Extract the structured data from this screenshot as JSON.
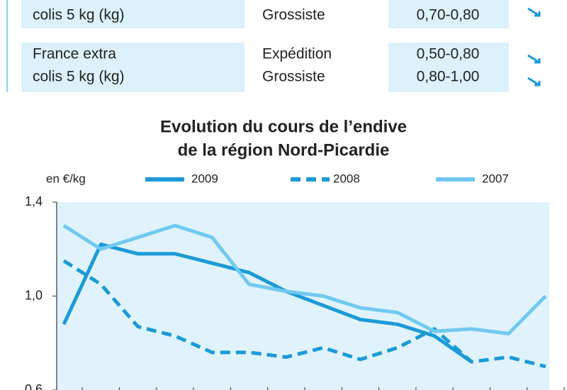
{
  "table": {
    "rows": [
      {
        "product": [
          "colis 5 kg (kg)"
        ],
        "stage": [
          "Grossiste"
        ],
        "price": [
          "0,70-0,80"
        ]
      },
      {
        "product": [
          "France extra",
          "colis 5 kg (kg)"
        ],
        "stage": [
          "Expédition",
          "Grossiste"
        ],
        "price": [
          "0,50-0,80",
          "0,80-1,00"
        ]
      }
    ]
  },
  "chart_data": {
    "type": "line",
    "title": [
      "Evolution du cours de l’endive",
      "de la région Nord-Picardie"
    ],
    "y_label": "en €/kg",
    "categories": [
      null,
      null,
      null,
      null,
      null,
      null,
      null,
      null,
      null,
      null,
      null,
      null,
      null,
      null
    ],
    "series": [
      {
        "name": "2009",
        "color": "#1b9ad8",
        "style": "solid",
        "values": [
          0.88,
          1.22,
          1.18,
          1.18,
          1.14,
          1.1,
          1.02,
          0.96,
          0.9,
          0.88,
          0.83,
          0.72,
          null,
          null
        ]
      },
      {
        "name": "2008",
        "color": "#1b9ad8",
        "style": "dashed",
        "values": [
          1.15,
          1.05,
          0.87,
          0.83,
          0.76,
          0.76,
          0.74,
          0.78,
          0.73,
          0.78,
          0.86,
          0.72,
          0.74,
          0.7
        ]
      },
      {
        "name": "2007",
        "color": "#70c9f0",
        "style": "solid",
        "values": [
          1.3,
          1.2,
          1.25,
          1.3,
          1.25,
          1.05,
          1.02,
          1.0,
          0.95,
          0.93,
          0.85,
          0.86,
          0.84,
          1.0
        ]
      }
    ],
    "ylim": [
      0.6,
      1.4
    ],
    "yticks": [
      {
        "value": 0.6,
        "label": "0,6"
      },
      {
        "value": 1.0,
        "label": "1,0"
      },
      {
        "value": 1.4,
        "label": "1,4"
      }
    ]
  }
}
